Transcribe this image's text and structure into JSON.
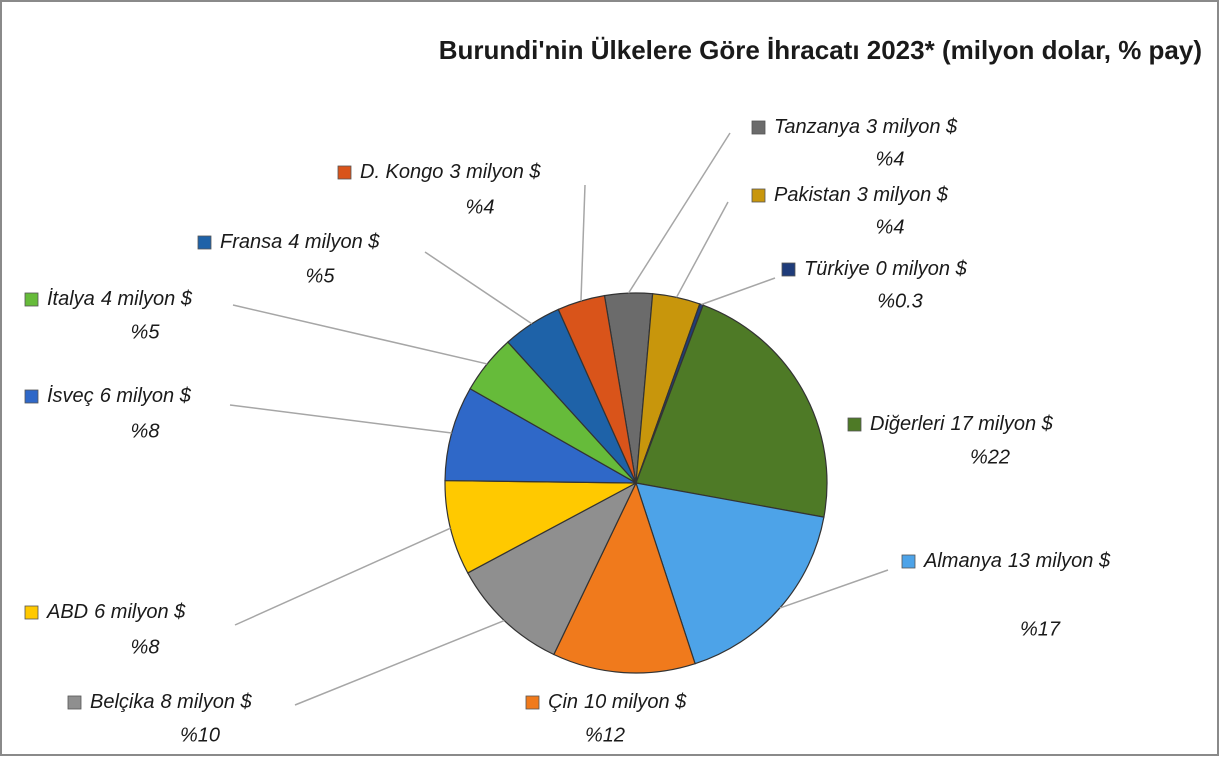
{
  "chart_data": {
    "type": "pie",
    "title": "Burundi'nin Ülkelere Göre İhracatı 2023* (milyon dolar, % pay)",
    "categories": [
      "Tanzanya",
      "Pakistan",
      "Türkiye",
      "Diğerleri",
      "Almanya",
      "Çin",
      "Belçika",
      "ABD",
      "İsveç",
      "İtalya",
      "Fransa",
      "D. Kongo"
    ],
    "values": [
      3,
      3,
      0,
      17,
      13,
      10,
      8,
      6,
      6,
      4,
      4,
      3
    ],
    "value_labels": [
      "3 milyon $",
      "3 milyon $",
      "0 milyon $",
      "17 milyon $",
      "13 milyon $",
      "10 milyon $",
      "8 milyon $",
      "6 milyon $",
      "6 milyon $",
      "4 milyon $",
      "4 milyon $",
      "3 milyon $"
    ],
    "percents": [
      4,
      4,
      0.3,
      22,
      17,
      12,
      10,
      8,
      8,
      5,
      5,
      4
    ],
    "percent_labels": [
      "%4",
      "%4",
      "%0.3",
      "%22",
      "%17",
      "%12",
      "%10",
      "%8",
      "%8",
      "%5",
      "%5",
      "%4"
    ],
    "colors": [
      "#6b6b6b",
      "#c8960c",
      "#1f3c7a",
      "#4e7a26",
      "#4da3e8",
      "#f07a1c",
      "#8f8f8f",
      "#ffc900",
      "#2f68c8",
      "#66bb3a",
      "#1e62a8",
      "#d9541a"
    ]
  }
}
